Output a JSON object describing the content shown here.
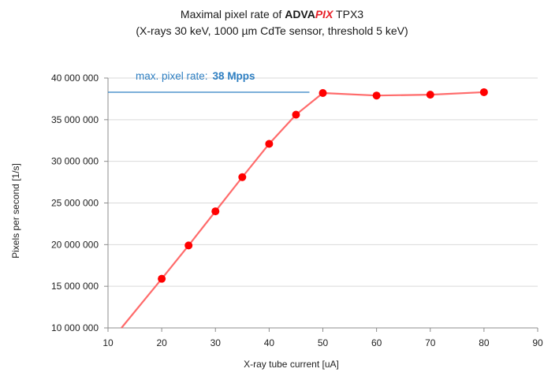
{
  "chart_data": {
    "type": "line",
    "title": {
      "prefix": "Maximal pixel rate of ",
      "brand_a": "ADVA",
      "brand_b": "PIX",
      "suffix": " TPX3"
    },
    "subtitle": "(X-rays 30  keV, 1000 µm CdTe sensor, threshold 5 keV)",
    "xlabel": "X-ray tube current [uA]",
    "ylabel": "Pixels per second [1/s]",
    "xlim": [
      10,
      90
    ],
    "ylim": [
      10000000,
      40000000
    ],
    "xticks": [
      10,
      20,
      30,
      40,
      50,
      60,
      70,
      80,
      90
    ],
    "yticks": [
      10000000,
      15000000,
      20000000,
      25000000,
      30000000,
      35000000,
      40000000
    ],
    "ytick_labels": [
      "10 000 000",
      "15 000 000",
      "20 000 000",
      "25 000 000",
      "30 000 000",
      "35 000 000",
      "40 000 000"
    ],
    "series": [
      {
        "color": "#ff0000",
        "line_color": "#ff6b6b",
        "x": [
          20,
          25,
          30,
          35,
          40,
          45,
          50,
          60,
          70,
          80
        ],
        "y": [
          15900000,
          19900000,
          24000000,
          28100000,
          32100000,
          35600000,
          38200000,
          37900000,
          38000000,
          38300000
        ],
        "extrapolated_start": {
          "x": 12.5,
          "y": 10000000
        }
      }
    ],
    "annotation": {
      "label": "max. pixel rate:",
      "value": "38 Mpps",
      "line_y": 38300000,
      "line_x": [
        10,
        47.5
      ],
      "color": "#2e7fc2"
    },
    "grid": {
      "horizontal": true,
      "vertical": false,
      "color": "#d9d9d9"
    }
  }
}
